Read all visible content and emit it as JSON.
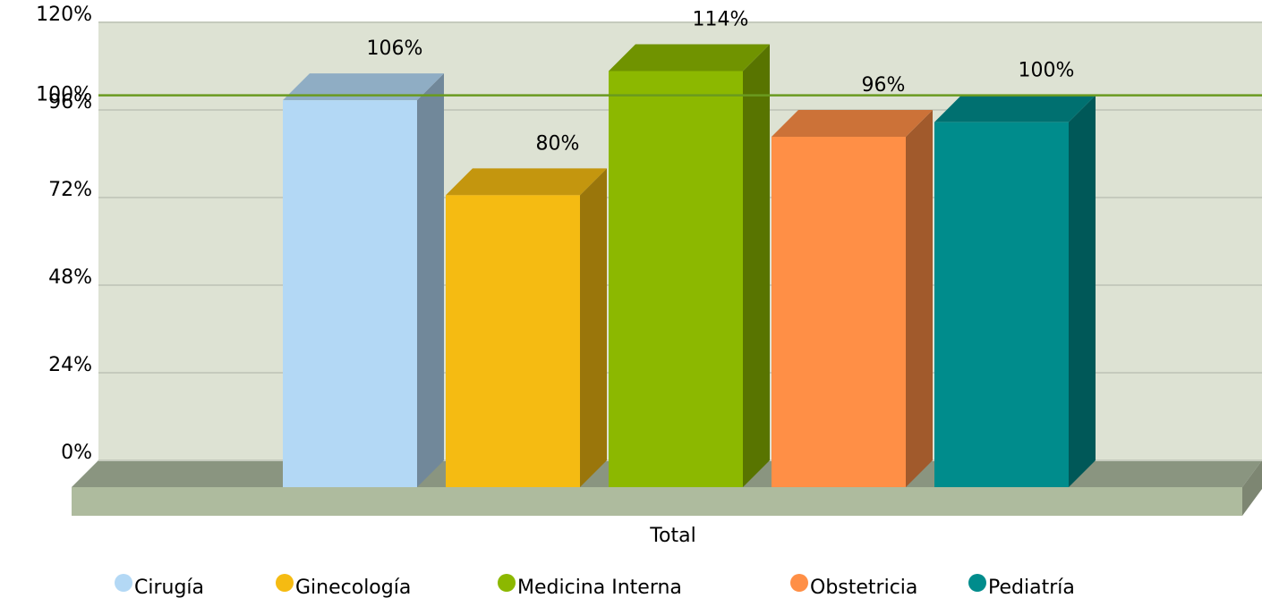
{
  "chart_data": {
    "type": "bar3d",
    "categories": [
      "Total"
    ],
    "series": [
      {
        "name": "Cirugía",
        "color": "#b3d8f5",
        "values": [
          106
        ],
        "value_labels": [
          "106%"
        ]
      },
      {
        "name": "Ginecología",
        "color": "#f5bb12",
        "values": [
          80
        ],
        "value_labels": [
          "80%"
        ]
      },
      {
        "name": "Medicina Interna",
        "color": "#8cb800",
        "values": [
          114
        ],
        "value_labels": [
          "114%"
        ]
      },
      {
        "name": "Obstetricia",
        "color": "#ff8f46",
        "values": [
          96
        ],
        "value_labels": [
          "96%"
        ]
      },
      {
        "name": "Pediatría",
        "color": "#008c8c",
        "values": [
          100
        ],
        "value_labels": [
          "100%"
        ]
      }
    ],
    "ylim": [
      0,
      120
    ],
    "yticks": [
      {
        "value": 0,
        "label": "0%"
      },
      {
        "value": 24,
        "label": "24%"
      },
      {
        "value": 48,
        "label": "48%"
      },
      {
        "value": 72,
        "label": "72%"
      },
      {
        "value": 96,
        "label": "96%"
      },
      {
        "value": 120,
        "label": "120%"
      }
    ],
    "grid": true,
    "trend_line": {
      "value": 100,
      "label": "100%",
      "color": "#6a9a1f"
    },
    "legend": "bottom"
  }
}
